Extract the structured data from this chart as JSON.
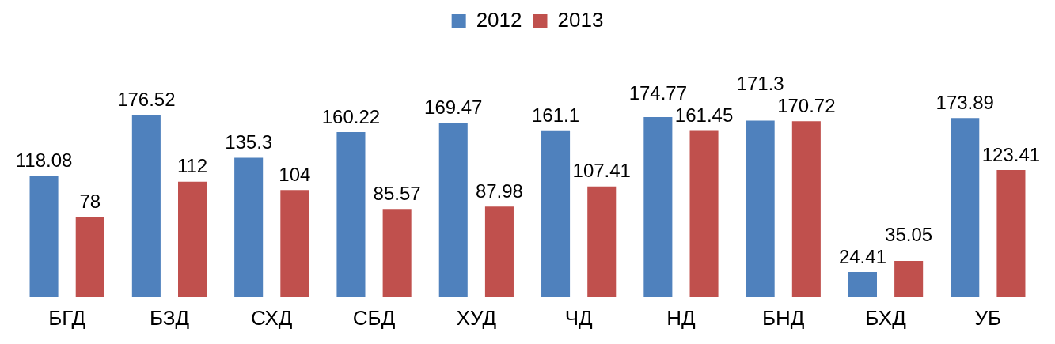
{
  "chart_data": {
    "type": "bar",
    "categories": [
      "БГД",
      "БЗД",
      "СХД",
      "СБД",
      "ХУД",
      "ЧД",
      "НД",
      "БНД",
      "БХД",
      "УБ"
    ],
    "series": [
      {
        "name": "2012",
        "color": "#4f81bd",
        "values": [
          118.08,
          176.52,
          135.3,
          160.22,
          169.47,
          161.1,
          174.77,
          171.3,
          24.41,
          173.89
        ]
      },
      {
        "name": "2013",
        "color": "#c0504d",
        "values": [
          78,
          112,
          104,
          85.57,
          87.98,
          107.41,
          161.45,
          170.72,
          35.05,
          123.41
        ]
      }
    ],
    "data_labels": true,
    "legend": "top",
    "grid": false
  }
}
